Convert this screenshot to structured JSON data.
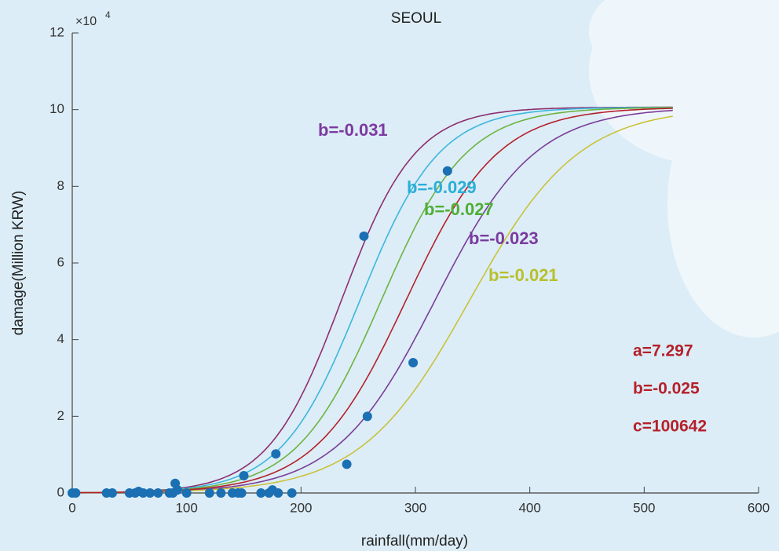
{
  "chart_data": {
    "type": "scatter",
    "title": "SEOUL",
    "xlabel": "rainfall(mm/day)",
    "ylabel": "damage(Million KRW)",
    "y_multiplier": "×10",
    "y_multiplier_exp": "4",
    "xlim": [
      0,
      600
    ],
    "xticks": [
      0,
      100,
      200,
      300,
      400,
      500,
      600
    ],
    "ylim": [
      0,
      120000
    ],
    "yticks": [
      {
        "value": 0,
        "label": "0"
      },
      {
        "value": 20000,
        "label": "2"
      },
      {
        "value": 40000,
        "label": "4"
      },
      {
        "value": 60000,
        "label": "6"
      },
      {
        "value": 80000,
        "label": "8"
      },
      {
        "value": 100000,
        "label": "10"
      },
      {
        "value": 120000,
        "label": "12"
      }
    ],
    "points": {
      "color": "#1b6fb3",
      "x": [
        0,
        3,
        30,
        35,
        50,
        55,
        58,
        62,
        68,
        75,
        85,
        88,
        90,
        92,
        100,
        120,
        130,
        140,
        145,
        148,
        150,
        165,
        172,
        175,
        180,
        178,
        192,
        240,
        255,
        258,
        298,
        328
      ],
      "values": [
        0,
        0,
        0,
        0,
        0,
        0,
        400,
        0,
        0,
        0,
        0,
        0,
        2500,
        800,
        0,
        0,
        0,
        0,
        0,
        0,
        4500,
        0,
        0,
        800,
        0,
        10200,
        0,
        7500,
        67000,
        20000,
        34000,
        84000
      ]
    },
    "curve_xlim": [
      0,
      525
    ],
    "model": {
      "a": 7.297,
      "b": -0.025,
      "c": 100642,
      "color": "#b5202a",
      "labels": [
        "a=7.297",
        "b=-0.025",
        "c=100642"
      ]
    },
    "curves": [
      {
        "name": "b=-0.031",
        "b": -0.031,
        "color": "#8e2d6e",
        "label_color": "#7d3aa0"
      },
      {
        "name": "b=-0.029",
        "b": -0.029,
        "color": "#3cb6dd",
        "label_color": "#2aaed8"
      },
      {
        "name": "b=-0.027",
        "b": -0.027,
        "color": "#6db33f",
        "label_color": "#4fae35"
      },
      {
        "name": "b=-0.023",
        "b": -0.023,
        "color": "#7b3d97",
        "label_color": "#7b3aa0"
      },
      {
        "name": "b=-0.021",
        "b": -0.021,
        "color": "#c9c23a",
        "label_color": "#b7c02c"
      }
    ]
  }
}
